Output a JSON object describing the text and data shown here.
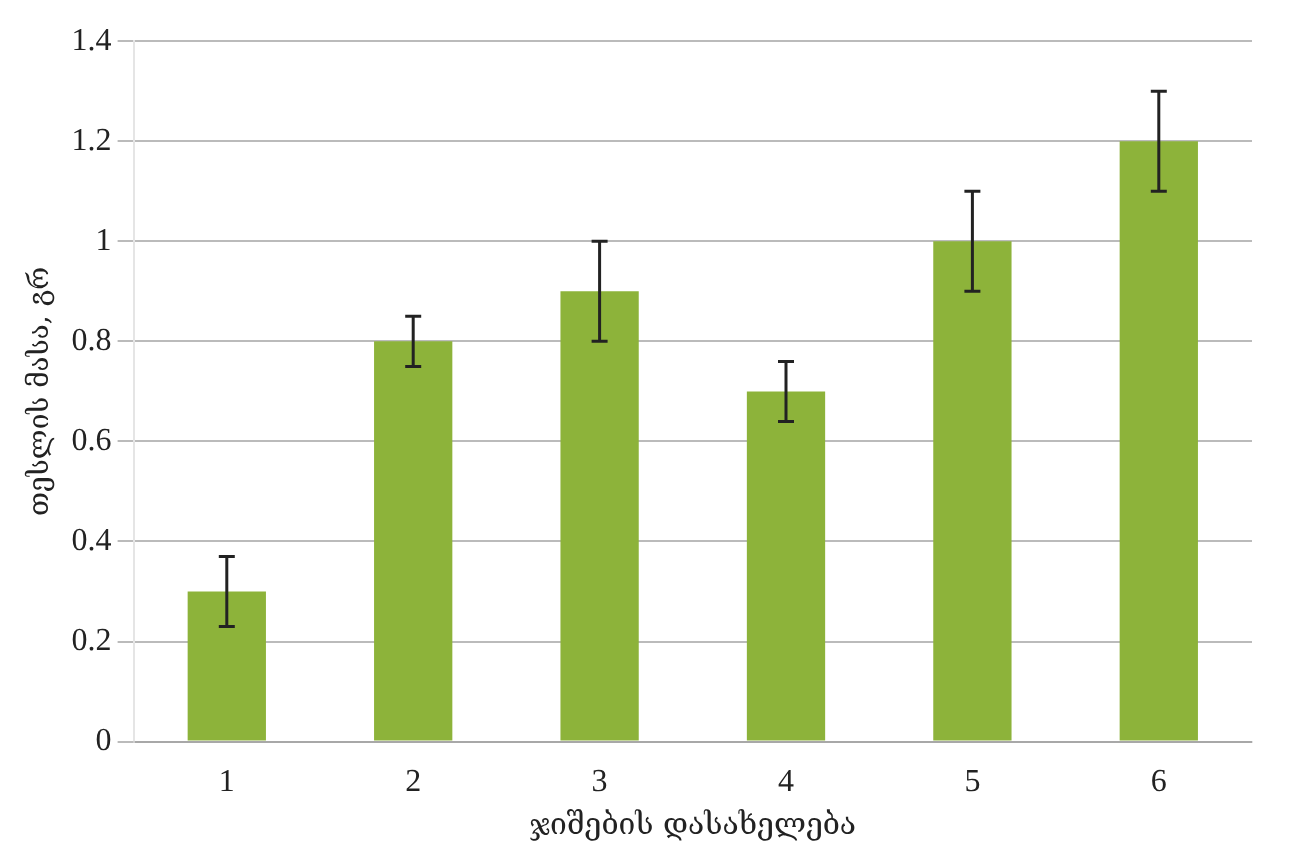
{
  "chart_data": {
    "type": "bar",
    "xlabel": "ჯიშების დასახელება",
    "ylabel": "თესლის მასა, გრ",
    "categories": [
      "1",
      "2",
      "3",
      "4",
      "5",
      "6"
    ],
    "values": [
      0.3,
      0.8,
      0.9,
      0.7,
      1.0,
      1.2
    ],
    "errors": [
      0.07,
      0.05,
      0.1,
      0.06,
      0.1,
      0.1
    ],
    "color": "#8db33a",
    "ylim": [
      0,
      1.4
    ],
    "yticks": [
      0,
      0.2,
      0.4,
      0.6,
      0.8,
      1,
      1.2,
      1.4
    ],
    "grid": "y",
    "legend": false
  }
}
